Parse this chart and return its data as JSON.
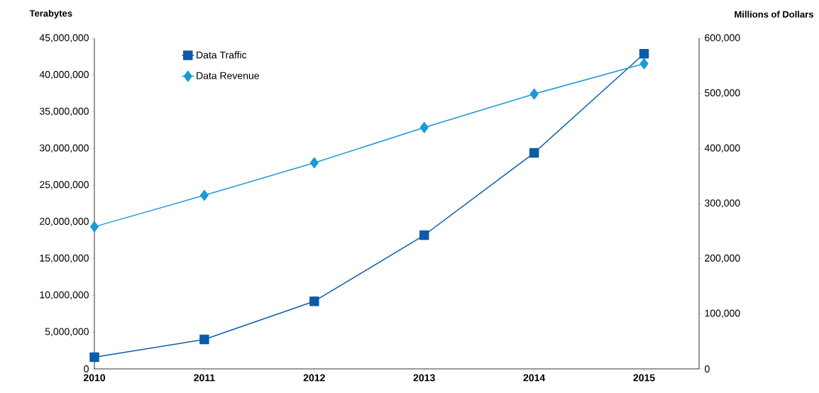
{
  "chart_data": {
    "type": "line",
    "ylabel": "Terabytes",
    "y2label": "Millions of Dollars",
    "x": [
      2010,
      2011,
      2012,
      2013,
      2014,
      2015
    ],
    "xlim": [
      2010,
      2015.5
    ],
    "xticks": [
      2010,
      2011,
      2012,
      2013,
      2014,
      2015
    ],
    "ylim": [
      0,
      45000000
    ],
    "yticks": [
      {
        "value": 0,
        "label": "0"
      },
      {
        "value": 5000000,
        "label": "5,000,000"
      },
      {
        "value": 10000000,
        "label": "10,000,000"
      },
      {
        "value": 15000000,
        "label": "15,000,000"
      },
      {
        "value": 20000000,
        "label": "20,000,000"
      },
      {
        "value": 25000000,
        "label": "25,000,000"
      },
      {
        "value": 30000000,
        "label": "30,000,000"
      },
      {
        "value": 35000000,
        "label": "35,000,000"
      },
      {
        "value": 40000000,
        "label": "40,000,000"
      },
      {
        "value": 45000000,
        "label": "45,000,000"
      }
    ],
    "y2lim": [
      0,
      600000
    ],
    "y2ticks": [
      {
        "value": 0,
        "label": "0"
      },
      {
        "value": 100000,
        "label": "100,000"
      },
      {
        "value": 200000,
        "label": "200,000"
      },
      {
        "value": 300000,
        "label": "300,000"
      },
      {
        "value": 400000,
        "label": "400,000"
      },
      {
        "value": 500000,
        "label": "500,000"
      },
      {
        "value": 600000,
        "label": "600,000"
      }
    ],
    "series": [
      {
        "name": "Data Traffic",
        "color": "#0b5ca8",
        "marker": "square",
        "values": [
          1600000,
          4000000,
          9200000,
          18200000,
          29400000,
          42900000
        ]
      },
      {
        "name": "Data Revenue",
        "color": "#1b9ad6",
        "marker": "diamond",
        "axis": "y2",
        "values": [
          258000,
          315000,
          374000,
          438000,
          499000,
          554000
        ]
      }
    ],
    "legend": "top left",
    "grid": false,
    "line_style": "solid"
  }
}
